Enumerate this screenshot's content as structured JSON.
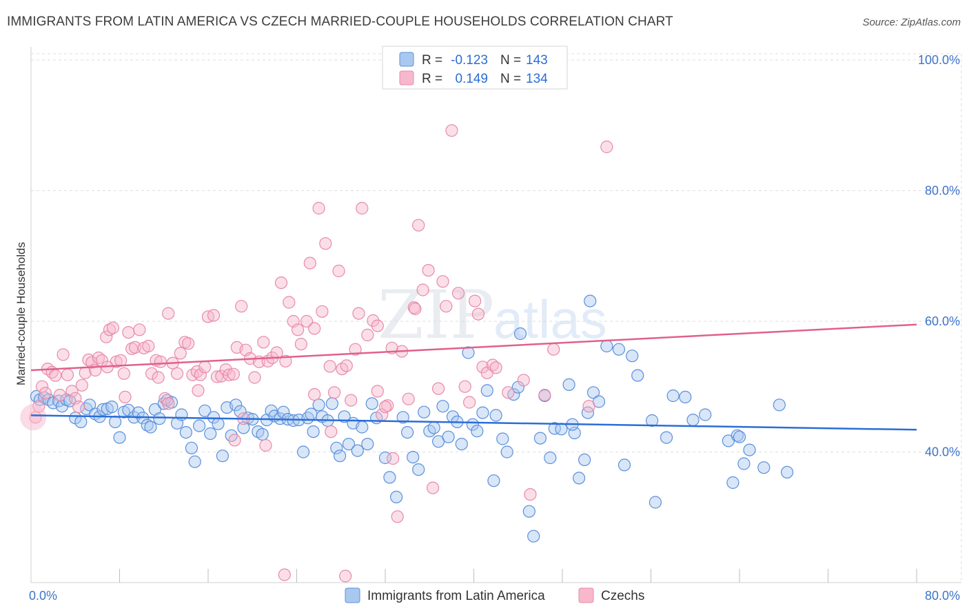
{
  "title": "IMMIGRANTS FROM LATIN AMERICA VS CZECH MARRIED-COUPLE HOUSEHOLDS CORRELATION CHART",
  "source": "Source: ZipAtlas.com",
  "watermark": {
    "zip": "ZIP",
    "atlas": "atlas"
  },
  "colors": {
    "blue_fill": "#a9c8f0",
    "blue_stroke": "#5a8fdb",
    "blue_line": "#2a6dd6",
    "pink_fill": "#f7b8cc",
    "pink_stroke": "#e889a8",
    "pink_line": "#e0608c",
    "tick_text": "#3d73c9",
    "grid": "#dddddd"
  },
  "legend": {
    "rows": [
      {
        "r_label": "R =",
        "r_value": "-0.123",
        "n_label": "N =",
        "n_value": "143"
      },
      {
        "r_label": "R =",
        "r_value": "0.149",
        "n_label": "N =",
        "n_value": "134"
      }
    ]
  },
  "chart_data": {
    "type": "scatter",
    "title": "IMMIGRANTS FROM LATIN AMERICA VS CZECH MARRIED-COUPLE HOUSEHOLDS CORRELATION CHART",
    "xlabel": "",
    "ylabel": "Married-couple Households",
    "xlim": [
      0,
      80
    ],
    "ylim": [
      20,
      102
    ],
    "x_tick_labels": [
      "0.0%",
      "80.0%"
    ],
    "y_ticks": [
      40,
      60,
      80,
      100
    ],
    "y_tick_labels": [
      "40.0%",
      "60.0%",
      "80.0%",
      "100.0%"
    ],
    "grid": true,
    "legend_position": "top-center",
    "series": [
      {
        "name": "Immigrants from Latin America",
        "r": -0.123,
        "n": 143,
        "trend": {
          "x": [
            0,
            80
          ],
          "y": [
            45.6,
            43.4
          ]
        },
        "points": [
          [
            0.5,
            48.5
          ],
          [
            0.8,
            48.0
          ],
          [
            1.2,
            48.3
          ],
          [
            1.6,
            48.0
          ],
          [
            2.0,
            47.5
          ],
          [
            2.5,
            47.8
          ],
          [
            2.8,
            47.0
          ],
          [
            3.2,
            48.0
          ],
          [
            3.5,
            47.8
          ],
          [
            4.0,
            45.2
          ],
          [
            4.5,
            44.6
          ],
          [
            5.0,
            46.6
          ],
          [
            5.3,
            47.2
          ],
          [
            5.8,
            45.8
          ],
          [
            6.2,
            45.4
          ],
          [
            6.5,
            46.5
          ],
          [
            6.9,
            46.6
          ],
          [
            7.3,
            46.9
          ],
          [
            7.6,
            44.6
          ],
          [
            8.0,
            42.2
          ],
          [
            8.4,
            46.1
          ],
          [
            8.8,
            46.4
          ],
          [
            9.3,
            45.3
          ],
          [
            9.7,
            46.0
          ],
          [
            10.1,
            45.2
          ],
          [
            10.5,
            44.1
          ],
          [
            10.8,
            43.8
          ],
          [
            11.2,
            46.5
          ],
          [
            11.6,
            45.1
          ],
          [
            12.0,
            47.4
          ],
          [
            12.3,
            47.9
          ],
          [
            12.7,
            47.6
          ],
          [
            13.2,
            44.4
          ],
          [
            13.6,
            45.7
          ],
          [
            14.0,
            43.0
          ],
          [
            14.5,
            40.6
          ],
          [
            14.8,
            38.5
          ],
          [
            15.2,
            44.0
          ],
          [
            15.7,
            46.3
          ],
          [
            16.2,
            42.8
          ],
          [
            16.5,
            45.3
          ],
          [
            16.9,
            44.3
          ],
          [
            17.3,
            39.4
          ],
          [
            17.7,
            46.8
          ],
          [
            18.1,
            42.5
          ],
          [
            18.5,
            47.2
          ],
          [
            18.9,
            46.2
          ],
          [
            19.2,
            43.7
          ],
          [
            19.6,
            45.2
          ],
          [
            20.0,
            45.0
          ],
          [
            20.5,
            43.1
          ],
          [
            20.9,
            42.7
          ],
          [
            21.3,
            44.9
          ],
          [
            21.7,
            46.3
          ],
          [
            22.0,
            45.5
          ],
          [
            22.5,
            45.1
          ],
          [
            22.8,
            46.1
          ],
          [
            23.2,
            45.0
          ],
          [
            23.7,
            44.8
          ],
          [
            24.2,
            44.9
          ],
          [
            24.6,
            40.0
          ],
          [
            25.0,
            45.2
          ],
          [
            25.5,
            43.1
          ],
          [
            26.0,
            47.2
          ],
          [
            26.3,
            45.4
          ],
          [
            26.8,
            44.8
          ],
          [
            27.2,
            47.4
          ],
          [
            27.6,
            40.6
          ],
          [
            27.9,
            39.4
          ],
          [
            28.3,
            45.4
          ],
          [
            28.7,
            41.2
          ],
          [
            29.1,
            44.4
          ],
          [
            29.5,
            40.2
          ],
          [
            29.9,
            43.8
          ],
          [
            30.4,
            41.2
          ],
          [
            30.8,
            47.4
          ],
          [
            31.2,
            45.2
          ],
          [
            32.0,
            39.1
          ],
          [
            32.4,
            36.1
          ],
          [
            33.0,
            33.1
          ],
          [
            33.6,
            45.3
          ],
          [
            34.0,
            43.0
          ],
          [
            34.5,
            39.2
          ],
          [
            35.0,
            37.3
          ],
          [
            35.5,
            46.1
          ],
          [
            36.0,
            43.2
          ],
          [
            36.4,
            43.7
          ],
          [
            36.8,
            41.6
          ],
          [
            37.2,
            47.0
          ],
          [
            37.7,
            42.3
          ],
          [
            38.1,
            45.4
          ],
          [
            38.5,
            44.6
          ],
          [
            38.9,
            41.2
          ],
          [
            39.5,
            55.2
          ],
          [
            39.9,
            44.2
          ],
          [
            40.3,
            43.2
          ],
          [
            40.8,
            46.0
          ],
          [
            41.2,
            49.4
          ],
          [
            41.8,
            35.6
          ],
          [
            42.0,
            45.6
          ],
          [
            42.6,
            42.0
          ],
          [
            43.0,
            40.0
          ],
          [
            43.6,
            48.8
          ],
          [
            44.0,
            49.9
          ],
          [
            44.2,
            58.1
          ],
          [
            45.0,
            30.9
          ],
          [
            45.4,
            27.1
          ],
          [
            46.0,
            42.1
          ],
          [
            46.4,
            48.6
          ],
          [
            46.9,
            39.1
          ],
          [
            47.3,
            43.6
          ],
          [
            47.9,
            43.5
          ],
          [
            48.6,
            50.3
          ],
          [
            49.1,
            42.9
          ],
          [
            49.5,
            36.0
          ],
          [
            50.0,
            38.8
          ],
          [
            50.3,
            46.0
          ],
          [
            50.8,
            49.1
          ],
          [
            51.3,
            47.7
          ],
          [
            52.0,
            56.2
          ],
          [
            53.1,
            55.7
          ],
          [
            53.6,
            38.0
          ],
          [
            54.3,
            54.7
          ],
          [
            54.8,
            51.7
          ],
          [
            56.1,
            44.8
          ],
          [
            56.4,
            32.3
          ],
          [
            57.4,
            42.2
          ],
          [
            58.0,
            48.6
          ],
          [
            59.1,
            48.4
          ],
          [
            59.8,
            44.9
          ],
          [
            60.9,
            45.7
          ],
          [
            63.0,
            41.7
          ],
          [
            63.4,
            35.3
          ],
          [
            63.8,
            42.5
          ],
          [
            64.4,
            38.2
          ],
          [
            64.9,
            40.3
          ],
          [
            66.2,
            37.6
          ],
          [
            67.6,
            47.2
          ],
          [
            68.3,
            36.9
          ],
          [
            64.0,
            42.3
          ],
          [
            50.5,
            63.1
          ],
          [
            48.9,
            44.2
          ],
          [
            25.3,
            45.8
          ]
        ]
      },
      {
        "name": "Czechs",
        "r": 0.149,
        "n": 134,
        "trend": {
          "x": [
            0,
            80
          ],
          "y": [
            52.5,
            59.5
          ]
        },
        "points": [
          [
            0.4,
            45.3
          ],
          [
            0.7,
            47.0
          ],
          [
            1.0,
            50.0
          ],
          [
            1.3,
            49.0
          ],
          [
            1.5,
            52.7
          ],
          [
            1.9,
            52.2
          ],
          [
            2.2,
            51.7
          ],
          [
            2.6,
            48.7
          ],
          [
            2.9,
            54.9
          ],
          [
            3.3,
            51.8
          ],
          [
            3.7,
            49.3
          ],
          [
            4.0,
            48.2
          ],
          [
            4.3,
            46.9
          ],
          [
            4.6,
            50.2
          ],
          [
            4.9,
            52.1
          ],
          [
            5.2,
            54.1
          ],
          [
            5.5,
            53.7
          ],
          [
            5.8,
            52.5
          ],
          [
            6.1,
            54.4
          ],
          [
            6.4,
            54.0
          ],
          [
            6.8,
            57.6
          ],
          [
            7.1,
            58.7
          ],
          [
            7.4,
            59.0
          ],
          [
            7.7,
            53.8
          ],
          [
            8.1,
            54.0
          ],
          [
            8.4,
            52.0
          ],
          [
            8.8,
            58.3
          ],
          [
            9.1,
            55.8
          ],
          [
            9.4,
            56.0
          ],
          [
            9.8,
            58.7
          ],
          [
            10.2,
            55.9
          ],
          [
            10.6,
            56.2
          ],
          [
            10.9,
            52.0
          ],
          [
            11.3,
            54.0
          ],
          [
            11.7,
            53.8
          ],
          [
            12.1,
            48.2
          ],
          [
            12.4,
            61.2
          ],
          [
            12.8,
            53.6
          ],
          [
            13.2,
            52.0
          ],
          [
            13.5,
            55.1
          ],
          [
            13.9,
            56.8
          ],
          [
            14.2,
            56.6
          ],
          [
            14.6,
            51.8
          ],
          [
            15.0,
            52.3
          ],
          [
            15.3,
            51.8
          ],
          [
            15.7,
            53.0
          ],
          [
            16.0,
            60.7
          ],
          [
            16.5,
            60.9
          ],
          [
            16.8,
            51.5
          ],
          [
            17.2,
            51.6
          ],
          [
            17.6,
            52.6
          ],
          [
            17.9,
            51.8
          ],
          [
            18.3,
            51.9
          ],
          [
            18.6,
            56.0
          ],
          [
            19.0,
            62.3
          ],
          [
            19.4,
            55.6
          ],
          [
            19.8,
            54.3
          ],
          [
            20.2,
            51.4
          ],
          [
            20.6,
            53.8
          ],
          [
            21.0,
            56.8
          ],
          [
            21.4,
            53.9
          ],
          [
            21.8,
            54.4
          ],
          [
            22.2,
            55.2
          ],
          [
            22.6,
            65.9
          ],
          [
            23.0,
            53.9
          ],
          [
            23.3,
            62.9
          ],
          [
            23.7,
            60.0
          ],
          [
            24.1,
            58.7
          ],
          [
            24.4,
            56.5
          ],
          [
            24.9,
            60.0
          ],
          [
            25.2,
            68.9
          ],
          [
            25.6,
            58.9
          ],
          [
            26.0,
            77.3
          ],
          [
            26.3,
            61.5
          ],
          [
            26.6,
            71.9
          ],
          [
            27.0,
            53.1
          ],
          [
            27.4,
            49.1
          ],
          [
            27.8,
            67.7
          ],
          [
            28.1,
            52.7
          ],
          [
            28.5,
            53.2
          ],
          [
            28.9,
            47.9
          ],
          [
            29.3,
            55.7
          ],
          [
            29.6,
            61.2
          ],
          [
            29.9,
            77.3
          ],
          [
            30.4,
            57.9
          ],
          [
            30.9,
            60.1
          ],
          [
            31.3,
            59.3
          ],
          [
            31.7,
            45.7
          ],
          [
            32.2,
            47.1
          ],
          [
            32.7,
            39.0
          ],
          [
            33.1,
            30.1
          ],
          [
            33.5,
            55.4
          ],
          [
            34.1,
            48.1
          ],
          [
            34.6,
            62.1
          ],
          [
            35.0,
            74.7
          ],
          [
            35.4,
            64.8
          ],
          [
            35.9,
            67.8
          ],
          [
            36.3,
            34.5
          ],
          [
            36.8,
            49.7
          ],
          [
            37.2,
            66.1
          ],
          [
            37.5,
            62.3
          ],
          [
            38.0,
            89.2
          ],
          [
            38.6,
            64.3
          ],
          [
            39.2,
            50.0
          ],
          [
            39.6,
            47.6
          ],
          [
            40.1,
            63.1
          ],
          [
            40.4,
            61.1
          ],
          [
            40.8,
            53.0
          ],
          [
            41.2,
            52.1
          ],
          [
            41.7,
            53.3
          ],
          [
            42.0,
            52.9
          ],
          [
            43.1,
            49.1
          ],
          [
            44.5,
            51.0
          ],
          [
            45.1,
            33.5
          ],
          [
            46.4,
            48.7
          ],
          [
            47.2,
            55.7
          ],
          [
            52.0,
            86.7
          ],
          [
            22.9,
            21.2
          ],
          [
            28.4,
            21.0
          ],
          [
            32.0,
            46.9
          ],
          [
            18.4,
            41.8
          ],
          [
            19.2,
            45.1
          ],
          [
            27.1,
            43.1
          ],
          [
            32.6,
            55.9
          ],
          [
            34.7,
            61.9
          ],
          [
            31.3,
            49.3
          ],
          [
            15.1,
            49.4
          ],
          [
            12.4,
            47.4
          ],
          [
            50.4,
            47.0
          ],
          [
            6.9,
            53.0
          ],
          [
            8.5,
            48.4
          ],
          [
            11.5,
            51.4
          ],
          [
            21.2,
            41.0
          ],
          [
            25.6,
            48.8
          ]
        ]
      }
    ]
  },
  "bottom_legend": {
    "items": [
      {
        "label": "Immigrants from Latin America"
      },
      {
        "label": "Czechs"
      }
    ]
  }
}
